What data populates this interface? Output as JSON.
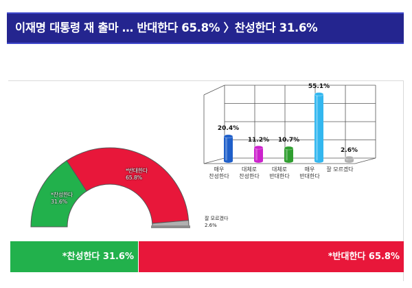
{
  "headline": "이재명 대통령 재 출마 … 반대한다 65.8% 〉찬성한다 31.6%",
  "colors": {
    "banner_bg": "#24258f",
    "support": "#22b14c",
    "oppose": "#e8173a",
    "unsure": "#b0b0b0",
    "strongly_support": "#1f5fc9",
    "somewhat_support": "#cc22cc",
    "somewhat_oppose": "#2f9e2f",
    "strongly_oppose": "#33b7ef"
  },
  "chart_data": [
    {
      "type": "pie",
      "variant": "half-donut",
      "slices": [
        {
          "name": "찬성한다",
          "value": 31.6,
          "label": "*찬성한다",
          "value_label": "31.6%"
        },
        {
          "name": "반대한다",
          "value": 65.8,
          "label": "*반대한다",
          "value_label": "65.8%"
        },
        {
          "name": "잘 모르겠다",
          "value": 2.6,
          "label": "잘 모르겠다",
          "value_label": "2.6%"
        }
      ]
    },
    {
      "type": "bar",
      "style": "3d-cylinder",
      "grid": true,
      "categories": [
        "매우\n찬성한다",
        "대체로\n찬성한다",
        "대체로\n반대한다",
        "매우\n반대한다",
        "잘 모르겠다"
      ],
      "values": [
        20.4,
        11.2,
        10.7,
        55.1,
        2.6
      ],
      "value_labels": [
        "20.4%",
        "11.2%",
        "10.7%",
        "55.1%",
        "2.6%"
      ],
      "ylim": [
        0,
        60
      ]
    },
    {
      "type": "bar",
      "variant": "100%-stacked-horizontal",
      "segments": [
        {
          "name": "찬성한다",
          "value": 31.6,
          "label": "*찬성한다 31.6%"
        },
        {
          "name": "반대한다",
          "value": 65.8,
          "label": "*반대한다 65.8%"
        }
      ]
    }
  ]
}
